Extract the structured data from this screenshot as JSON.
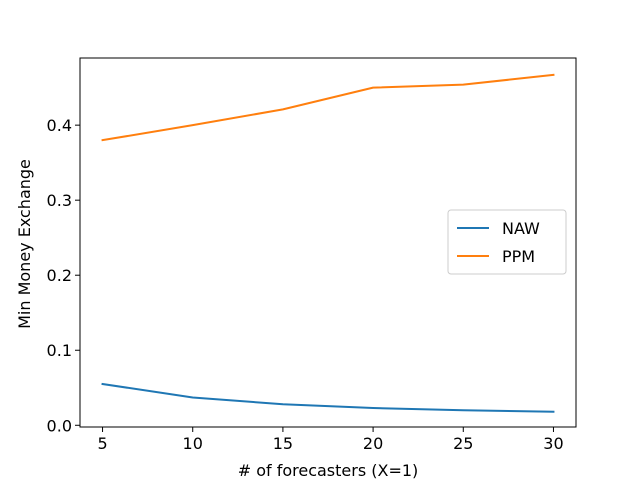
{
  "chart_data": {
    "type": "line",
    "title": "",
    "xlabel": "# of forecasters (X=1)",
    "ylabel": "Min Money Exchange",
    "x": [
      5,
      10,
      15,
      20,
      25,
      30
    ],
    "xlim": [
      3.75,
      31.25
    ],
    "ylim": [
      -0.0023,
      0.4895
    ],
    "xticks": [
      5,
      10,
      15,
      20,
      25,
      30
    ],
    "xtick_labels": [
      "5",
      "10",
      "15",
      "20",
      "25",
      "30"
    ],
    "yticks": [
      0.0,
      0.1,
      0.2,
      0.3,
      0.4
    ],
    "ytick_labels": [
      "0.0",
      "0.1",
      "0.2",
      "0.3",
      "0.4"
    ],
    "grid": false,
    "legend_position": "center-right",
    "series": [
      {
        "name": "NAW",
        "color": "#1f77b4",
        "values": [
          0.055,
          0.037,
          0.028,
          0.023,
          0.02,
          0.018
        ]
      },
      {
        "name": "PPM",
        "color": "#ff7f0e",
        "values": [
          0.38,
          0.4,
          0.421,
          0.45,
          0.454,
          0.467
        ]
      }
    ]
  }
}
